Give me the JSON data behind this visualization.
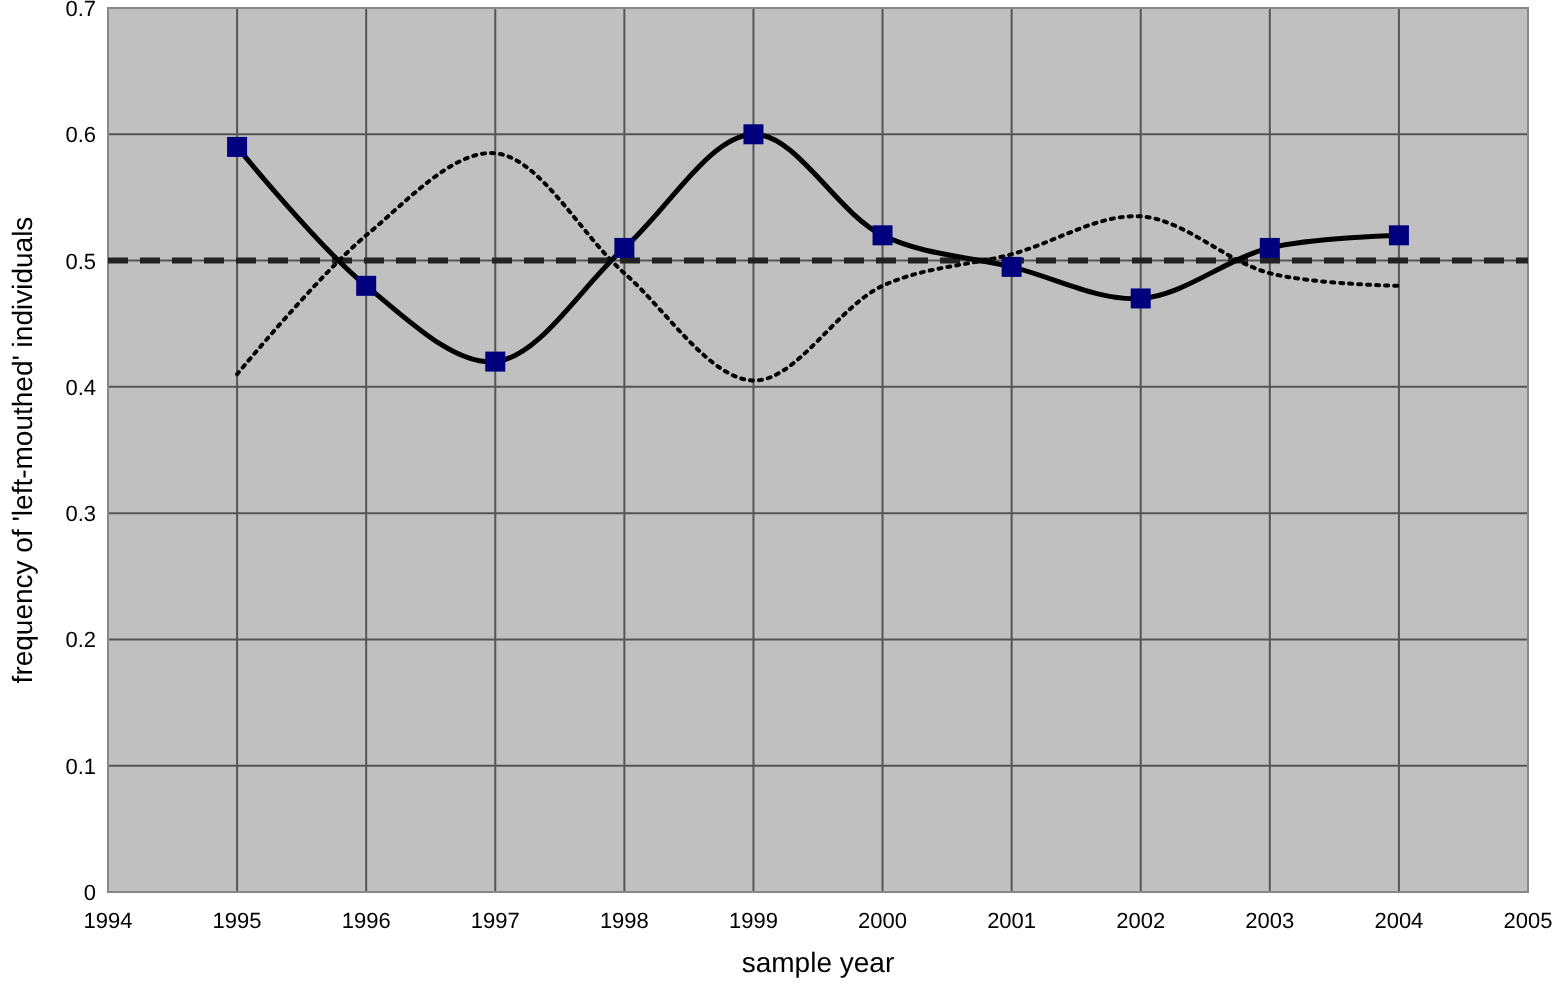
{
  "chart_data": {
    "type": "line",
    "xlabel": "sample year",
    "ylabel": "frequency of 'left-mouthed' individuals",
    "x": [
      1995,
      1996,
      1997,
      1998,
      1999,
      2000,
      2001,
      2002,
      2003,
      2004
    ],
    "series": [
      {
        "color": "#000000",
        "marker": "square",
        "line_style": "solid",
        "values": [
          0.59,
          0.48,
          0.42,
          0.51,
          0.6,
          0.52,
          0.495,
          0.47,
          0.51,
          0.52
        ]
      },
      {
        "color": "#000000",
        "marker": "none",
        "line_style": "dotted",
        "values": [
          0.41,
          0.52,
          0.585,
          0.49,
          0.405,
          0.48,
          0.505,
          0.535,
          0.49,
          0.48
        ]
      }
    ],
    "xlim": [
      1994,
      2005
    ],
    "xticks": [
      1994,
      1995,
      1996,
      1997,
      1998,
      1999,
      2000,
      2001,
      2002,
      2003,
      2004,
      2005
    ],
    "ylim": [
      0,
      0.7
    ],
    "yticks": [
      0,
      0.1,
      0.2,
      0.3,
      0.4,
      0.5,
      0.6,
      0.7
    ],
    "grid": true,
    "ref_lines": [
      {
        "axis": "y",
        "value": 0.5,
        "line_style": "dashed",
        "color": "#222222"
      }
    ]
  }
}
